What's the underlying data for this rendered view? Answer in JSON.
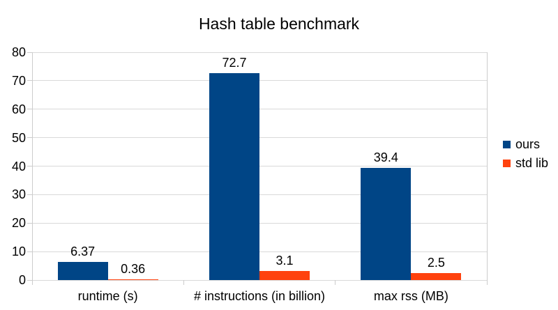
{
  "chart_data": {
    "type": "bar",
    "title": "Hash table benchmark",
    "categories": [
      "runtime (s)",
      "# instructions (in billion)",
      "max rss (MB)"
    ],
    "series": [
      {
        "name": "ours",
        "color": "#004586",
        "values": [
          6.37,
          72.7,
          39.4
        ],
        "labels": [
          "6.37",
          "72.7",
          "39.4"
        ]
      },
      {
        "name": "std lib",
        "color": "#ff420e",
        "values": [
          0.36,
          3.1,
          2.5
        ],
        "labels": [
          "0.36",
          "3.1",
          "2.5"
        ]
      }
    ],
    "ylim": [
      0,
      80
    ],
    "ytick_step": 10,
    "ytick_labels": [
      "0",
      "10",
      "20",
      "30",
      "40",
      "50",
      "60",
      "70",
      "80"
    ],
    "xlabel": "",
    "ylabel": "",
    "grid": true,
    "legend_position": "right",
    "grid_color": "#d9d9d9",
    "axis_color": "#cccccc",
    "text_color": "#000000",
    "background_color": "#ffffff"
  }
}
